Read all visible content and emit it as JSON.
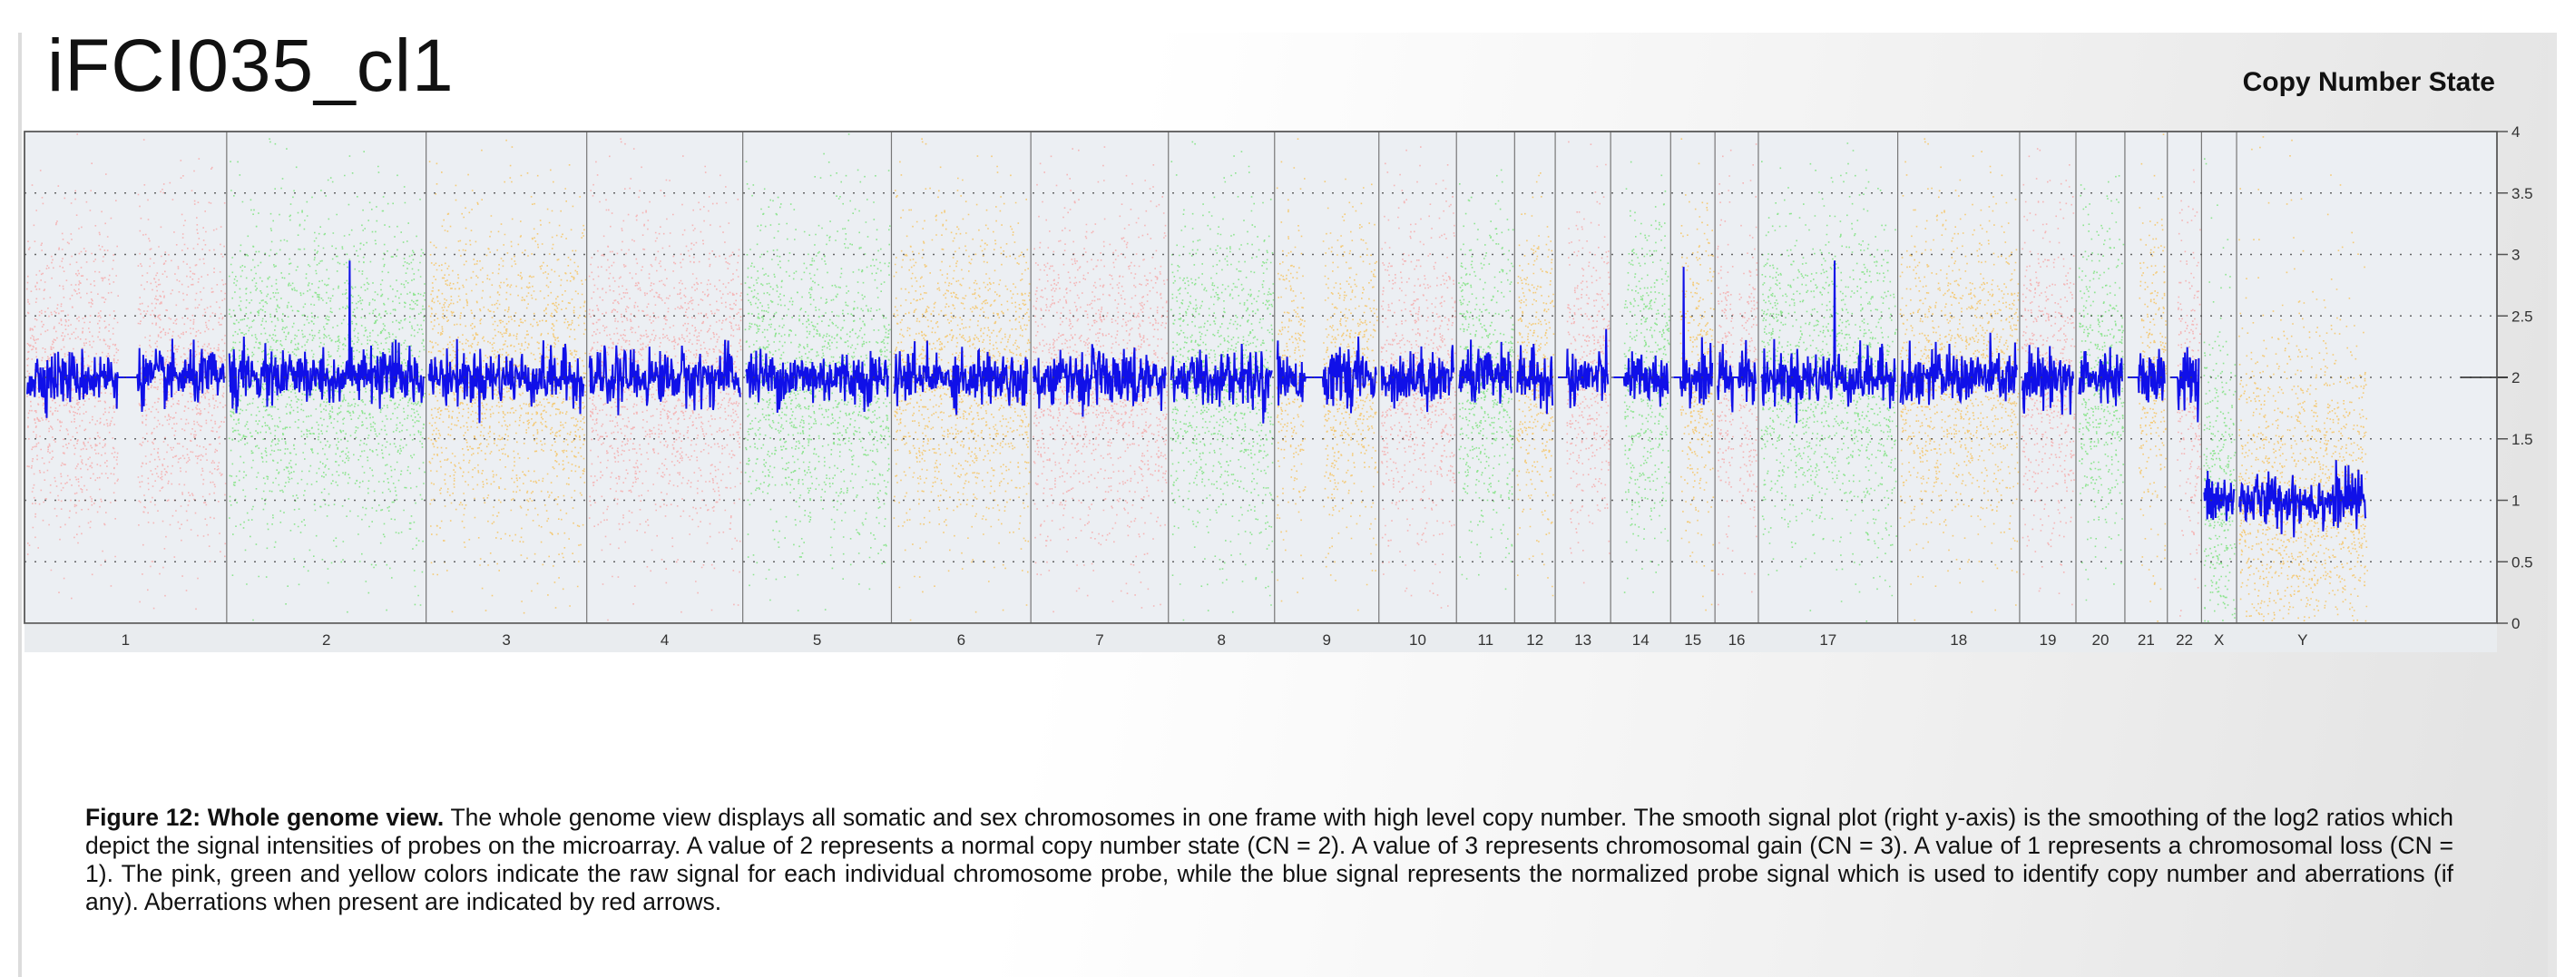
{
  "sample_title": "iFCI035_cl1",
  "legend_title": "Copy Number State",
  "caption": {
    "label": "Figure 12: Whole genome view.",
    "text": " The whole genome view displays all somatic and sex chromosomes in one frame with high level copy number. The smooth signal plot (right y-axis) is the smoothing of the log2 ratios which depict the signal intensities of probes on the microarray. A value of 2 represents a normal copy number state (CN = 2). A value of 3 represents chromosomal gain (CN = 3). A value of 1 represents a chromosomal loss (CN = 1). The pink, green and yellow colors indicate the raw signal for each individual chromosome probe, while the blue signal represents the normalized probe signal which is used to identify copy number and aberrations (if any). Aberrations when present are indicated by red arrows."
  },
  "colors": {
    "pink": "#f7a3a3",
    "green": "#6fe06f",
    "yellow": "#f7bd4f",
    "smooth_signal": "#1010e8",
    "panel_bg": "#eceff3",
    "axis": "#555555"
  },
  "chart_data": {
    "type": "scatter",
    "title": "Copy Number State",
    "xlabel": "",
    "ylabel": "",
    "ylim": [
      0,
      4
    ],
    "y_axis_side": "right",
    "y_ticks": [
      "0",
      "0.5",
      "1",
      "1.5",
      "2",
      "2.5",
      "3",
      "3.5",
      "4"
    ],
    "grid": true,
    "chromosomes": [
      {
        "label": "1",
        "color": "pink",
        "cn": 2,
        "gaps": [
          0.46,
          0.56
        ]
      },
      {
        "label": "2",
        "color": "green",
        "cn": 2,
        "spikes": [
          [
            0.62,
            2.95
          ]
        ]
      },
      {
        "label": "3",
        "color": "yellow",
        "cn": 2
      },
      {
        "label": "4",
        "color": "pink",
        "cn": 2
      },
      {
        "label": "5",
        "color": "green",
        "cn": 2
      },
      {
        "label": "6",
        "color": "yellow",
        "cn": 2
      },
      {
        "label": "7",
        "color": "pink",
        "cn": 2
      },
      {
        "label": "8",
        "color": "green",
        "cn": 2
      },
      {
        "label": "9",
        "color": "yellow",
        "cn": 2,
        "gaps": [
          0.28,
          0.46
        ]
      },
      {
        "label": "10",
        "color": "pink",
        "cn": 2
      },
      {
        "label": "11",
        "color": "green",
        "cn": 2
      },
      {
        "label": "12",
        "color": "yellow",
        "cn": 2
      },
      {
        "label": "13",
        "color": "pink",
        "cn": 2,
        "gaps": [
          0.0,
          0.18
        ]
      },
      {
        "label": "14",
        "color": "green",
        "cn": 2,
        "gaps": [
          0.0,
          0.2
        ]
      },
      {
        "label": "15",
        "color": "yellow",
        "cn": 2,
        "gaps": [
          0.0,
          0.18
        ],
        "spikes": [
          [
            0.27,
            2.9
          ]
        ]
      },
      {
        "label": "16",
        "color": "pink",
        "cn": 2,
        "gaps": [
          0.4,
          0.55
        ]
      },
      {
        "label": "17",
        "color": "green",
        "cn": 2,
        "spikes": [
          [
            0.55,
            2.95
          ]
        ]
      },
      {
        "label": "18",
        "color": "yellow",
        "cn": 2
      },
      {
        "label": "19",
        "color": "pink",
        "cn": 2
      },
      {
        "label": "20",
        "color": "green",
        "cn": 2
      },
      {
        "label": "21",
        "color": "yellow",
        "cn": 2,
        "gaps": [
          0.0,
          0.3
        ]
      },
      {
        "label": "22",
        "color": "pink",
        "cn": 2,
        "gaps": [
          0.0,
          0.25
        ]
      },
      {
        "label": "X",
        "color": "green",
        "cn": 1
      },
      {
        "label": "Y",
        "color": "yellow",
        "cn": 1
      }
    ]
  }
}
